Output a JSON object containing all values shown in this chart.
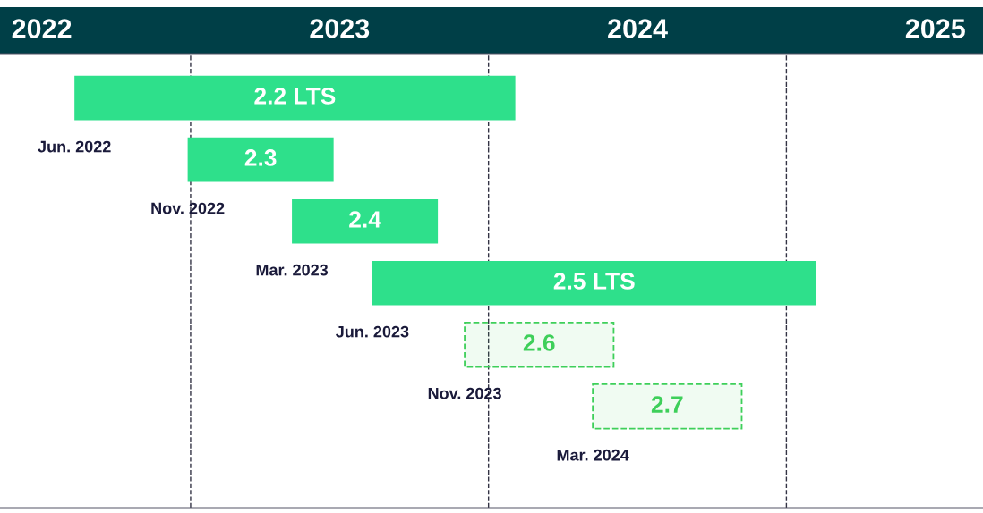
{
  "chart_data": {
    "type": "bar",
    "orientation": "horizontal",
    "stacked": true,
    "categories": [
      "2.2 LTS",
      "2.3",
      "2.4",
      "2.5 LTS",
      "2.6",
      "2.7"
    ],
    "series": [
      {
        "color": "#2ee08b",
        "line_style": "solid",
        "base": [
          2022.61,
          2022.99,
          2023.34,
          2023.61,
          null,
          null
        ],
        "values": [
          1.48,
          0.49,
          0.49,
          1.49,
          null,
          null
        ]
      },
      {
        "color": "#3ecf5a",
        "line_style": "dashed",
        "base": [
          null,
          null,
          null,
          null,
          2023.92,
          2024.35
        ],
        "values": [
          null,
          null,
          null,
          null,
          0.5,
          0.5
        ]
      }
    ],
    "xlim": [
      2022.36,
      2025.66
    ],
    "xticks": [
      {
        "value": 2022.5,
        "label": "2022"
      },
      {
        "value": 2023.5,
        "label": "2023"
      },
      {
        "value": 2024.5,
        "label": "2024"
      },
      {
        "value": 2025.5,
        "label": "2025"
      }
    ],
    "tick_labels": "x",
    "grid": false,
    "ref_lines": [
      {
        "axis": "x",
        "value": 2023,
        "line_style": "dashed",
        "color": "#333344"
      },
      {
        "axis": "x",
        "value": 2024,
        "line_style": "dashed",
        "color": "#333344"
      },
      {
        "axis": "x",
        "value": 2025,
        "line_style": "dashed",
        "color": "#333344"
      }
    ],
    "annotations": [
      "Jun. 2022",
      "Nov. 2022",
      "Mar. 2023",
      "Jun. 2023",
      "Nov. 2023",
      "Mar. 2024"
    ]
  }
}
